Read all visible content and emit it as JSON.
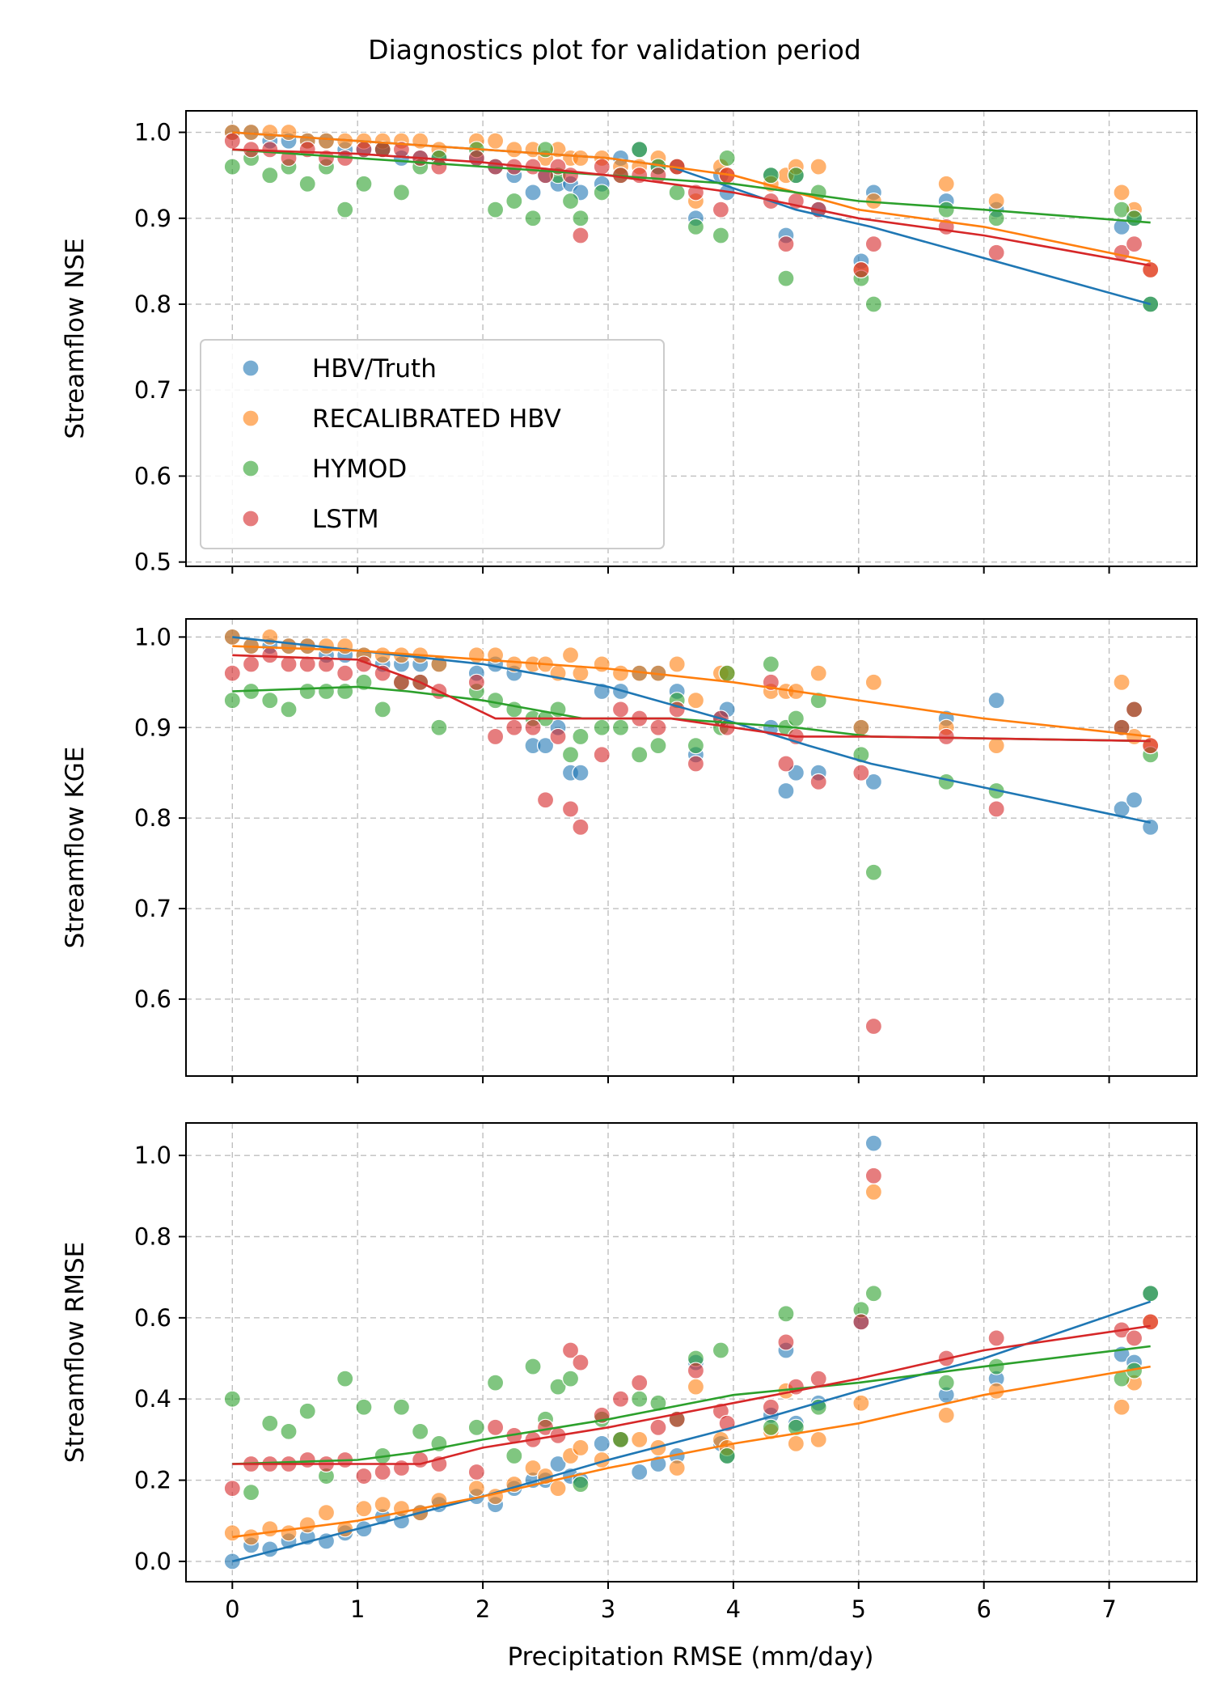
{
  "chart_data": {
    "type": "scatter",
    "title": "Diagnostics plot for validation period",
    "xlabel": "Precipitation RMSE (mm/day)",
    "xlim": [
      -0.37,
      7.7
    ],
    "xticks": [
      0,
      1,
      2,
      3,
      4,
      5,
      6,
      7
    ],
    "grid": true,
    "legend": {
      "placement": "lower-left of top panel",
      "entries": [
        "HBV/Truth",
        "RECALIBRATED HBV",
        "HYMOD",
        "LSTM"
      ]
    },
    "series_colors": {
      "HBV/Truth": "#1f77b4",
      "RECALIBRATED HBV": "#ff7f0e",
      "HYMOD": "#2ca02c",
      "LSTM": "#d62728"
    },
    "x": [
      0,
      0.15,
      0.3,
      0.45,
      0.6,
      0.75,
      0.9,
      1.05,
      1.2,
      1.35,
      1.5,
      1.65,
      1.95,
      2.1,
      2.25,
      2.4,
      2.5,
      2.6,
      2.7,
      2.78,
      2.95,
      3.1,
      3.25,
      3.4,
      3.55,
      3.7,
      3.9,
      3.95,
      4.3,
      4.42,
      4.5,
      4.68,
      5.02,
      5.12,
      5.7,
      6.1,
      7.1,
      7.2,
      7.33
    ],
    "panels": [
      {
        "ylabel": "Streamflow NSE",
        "ylim": [
          0.495,
          1.025
        ],
        "yticks": [
          0.5,
          0.6,
          0.7,
          0.8,
          0.9,
          1.0
        ],
        "series": [
          {
            "name": "HBV/Truth",
            "values": [
              1.0,
              1.0,
              0.99,
              0.99,
              0.99,
              0.99,
              0.98,
              0.98,
              0.98,
              0.97,
              0.97,
              0.97,
              0.97,
              0.96,
              0.95,
              0.93,
              0.95,
              0.94,
              0.94,
              0.93,
              0.94,
              0.97,
              0.98,
              0.96,
              0.96,
              0.9,
              0.95,
              0.93,
              0.95,
              0.88,
              0.95,
              0.91,
              0.85,
              0.93,
              0.92,
              0.91,
              0.89,
              0.9,
              0.8
            ]
          },
          {
            "name": "RECALIBRATED HBV",
            "values": [
              1.0,
              1.0,
              1.0,
              1.0,
              0.99,
              0.99,
              0.99,
              0.99,
              0.99,
              0.99,
              0.99,
              0.98,
              0.99,
              0.99,
              0.98,
              0.98,
              0.97,
              0.98,
              0.97,
              0.97,
              0.97,
              0.96,
              0.96,
              0.97,
              0.96,
              0.92,
              0.96,
              0.95,
              0.94,
              0.95,
              0.96,
              0.96,
              0.84,
              0.92,
              0.94,
              0.92,
              0.93,
              0.91,
              0.84
            ]
          },
          {
            "name": "HYMOD",
            "values": [
              0.96,
              0.97,
              0.95,
              0.96,
              0.94,
              0.96,
              0.91,
              0.94,
              0.98,
              0.93,
              0.96,
              0.97,
              0.98,
              0.91,
              0.92,
              0.9,
              0.98,
              0.95,
              0.92,
              0.9,
              0.93,
              0.95,
              0.98,
              0.96,
              0.93,
              0.89,
              0.88,
              0.97,
              0.95,
              0.83,
              0.95,
              0.93,
              0.83,
              0.8,
              0.91,
              0.9,
              0.91,
              0.9,
              0.8
            ]
          },
          {
            "name": "LSTM",
            "values": [
              0.99,
              0.98,
              0.98,
              0.97,
              0.98,
              0.97,
              0.97,
              0.98,
              0.98,
              0.98,
              0.97,
              0.96,
              0.97,
              0.96,
              0.96,
              0.96,
              0.95,
              0.96,
              0.95,
              0.88,
              0.96,
              0.95,
              0.95,
              0.95,
              0.96,
              0.93,
              0.91,
              0.95,
              0.92,
              0.87,
              0.92,
              0.91,
              0.84,
              0.87,
              0.89,
              0.86,
              0.86,
              0.87,
              0.84
            ]
          }
        ],
        "trend": [
          {
            "name": "HBV/Truth",
            "x": [
              0,
              1,
              2,
              3,
              3.5,
              4.5,
              5.1,
              7.33
            ],
            "y": [
              1.0,
              0.99,
              0.98,
              0.97,
              0.96,
              0.91,
              0.89,
              0.8
            ]
          },
          {
            "name": "RECALIBRATED HBV",
            "x": [
              0,
              1,
              2,
              3,
              4,
              5,
              6,
              7.33
            ],
            "y": [
              1.0,
              0.99,
              0.98,
              0.97,
              0.95,
              0.91,
              0.89,
              0.85
            ]
          },
          {
            "name": "HYMOD",
            "x": [
              0,
              1,
              2,
              3,
              4,
              5,
              6,
              7.33
            ],
            "y": [
              0.98,
              0.97,
              0.96,
              0.95,
              0.94,
              0.92,
              0.91,
              0.895
            ]
          },
          {
            "name": "LSTM",
            "x": [
              0,
              1,
              2,
              3,
              4,
              5,
              6,
              7.33
            ],
            "y": [
              0.98,
              0.975,
              0.965,
              0.95,
              0.93,
              0.9,
              0.88,
              0.845
            ]
          }
        ]
      },
      {
        "ylabel": "Streamflow KGE",
        "ylim": [
          0.515,
          1.02
        ],
        "yticks": [
          0.6,
          0.7,
          0.8,
          0.9,
          1.0
        ],
        "series": [
          {
            "name": "HBV/Truth",
            "values": [
              1.0,
              0.99,
              0.99,
              0.99,
              0.99,
              0.98,
              0.98,
              0.98,
              0.97,
              0.97,
              0.97,
              0.97,
              0.96,
              0.97,
              0.96,
              0.88,
              0.88,
              0.9,
              0.85,
              0.85,
              0.94,
              0.94,
              0.96,
              0.96,
              0.94,
              0.87,
              0.91,
              0.92,
              0.9,
              0.83,
              0.85,
              0.85,
              0.9,
              0.84,
              0.91,
              0.93,
              0.81,
              0.82,
              0.79
            ]
          },
          {
            "name": "RECALIBRATED HBV",
            "values": [
              1.0,
              0.99,
              1.0,
              0.99,
              0.99,
              0.99,
              0.99,
              0.98,
              0.98,
              0.98,
              0.98,
              0.97,
              0.98,
              0.98,
              0.97,
              0.97,
              0.97,
              0.96,
              0.98,
              0.96,
              0.97,
              0.96,
              0.96,
              0.96,
              0.97,
              0.93,
              0.96,
              0.96,
              0.94,
              0.94,
              0.94,
              0.96,
              0.9,
              0.95,
              0.9,
              0.88,
              0.95,
              0.89,
              0.88
            ]
          },
          {
            "name": "HYMOD",
            "values": [
              0.93,
              0.94,
              0.93,
              0.92,
              0.94,
              0.94,
              0.94,
              0.95,
              0.92,
              0.95,
              0.95,
              0.9,
              0.94,
              0.93,
              0.92,
              0.91,
              0.91,
              0.92,
              0.87,
              0.89,
              0.9,
              0.9,
              0.87,
              0.88,
              0.93,
              0.88,
              0.9,
              0.96,
              0.97,
              0.9,
              0.91,
              0.93,
              0.87,
              0.74,
              0.84,
              0.83,
              0.9,
              0.92,
              0.87
            ]
          },
          {
            "name": "LSTM",
            "values": [
              0.96,
              0.97,
              0.98,
              0.97,
              0.97,
              0.97,
              0.96,
              0.97,
              0.96,
              0.95,
              0.95,
              0.94,
              0.95,
              0.89,
              0.9,
              0.9,
              0.82,
              0.89,
              0.81,
              0.79,
              0.87,
              0.92,
              0.91,
              0.9,
              0.92,
              0.86,
              0.91,
              0.9,
              0.95,
              0.86,
              0.89,
              0.84,
              0.85,
              0.57,
              0.89,
              0.81,
              0.9,
              0.92,
              0.88
            ]
          }
        ],
        "trend": [
          {
            "name": "HBV/Truth",
            "x": [
              0,
              1,
              2,
              3,
              3.9,
              4.6,
              5.1,
              7.33
            ],
            "y": [
              1.0,
              0.985,
              0.97,
              0.945,
              0.91,
              0.88,
              0.86,
              0.795
            ]
          },
          {
            "name": "RECALIBRATED HBV",
            "x": [
              0,
              1,
              2,
              3,
              4,
              5,
              6,
              7.33
            ],
            "y": [
              0.99,
              0.985,
              0.975,
              0.965,
              0.95,
              0.93,
              0.91,
              0.89
            ]
          },
          {
            "name": "HYMOD",
            "x": [
              0,
              1,
              1.4,
              2,
              2.8,
              3.5,
              4.5,
              5.1,
              7.33
            ],
            "y": [
              0.94,
              0.945,
              0.94,
              0.93,
              0.91,
              0.91,
              0.9,
              0.89,
              0.885
            ]
          },
          {
            "name": "LSTM",
            "x": [
              0,
              1,
              1.5,
              2.1,
              2.6,
              3.5,
              4.5,
              5.1,
              7.33
            ],
            "y": [
              0.98,
              0.975,
              0.95,
              0.91,
              0.91,
              0.91,
              0.89,
              0.89,
              0.885
            ]
          }
        ]
      },
      {
        "ylabel": "Streamflow RMSE",
        "ylim": [
          -0.05,
          1.08
        ],
        "yticks": [
          0.0,
          0.2,
          0.4,
          0.6,
          0.8,
          1.0
        ],
        "series": [
          {
            "name": "HBV/Truth",
            "values": [
              0.0,
              0.04,
              0.03,
              0.05,
              0.06,
              0.05,
              0.07,
              0.08,
              0.11,
              0.1,
              0.12,
              0.14,
              0.16,
              0.14,
              0.18,
              0.2,
              0.2,
              0.24,
              0.21,
              0.2,
              0.29,
              0.3,
              0.22,
              0.24,
              0.26,
              0.49,
              0.29,
              0.26,
              0.36,
              0.52,
              0.34,
              0.39,
              0.59,
              1.03,
              0.41,
              0.45,
              0.51,
              0.49,
              0.66
            ]
          },
          {
            "name": "RECALIBRATED HBV",
            "values": [
              0.07,
              0.06,
              0.08,
              0.07,
              0.09,
              0.12,
              0.08,
              0.13,
              0.14,
              0.13,
              0.12,
              0.15,
              0.18,
              0.16,
              0.19,
              0.23,
              0.21,
              0.18,
              0.26,
              0.28,
              0.25,
              0.3,
              0.3,
              0.28,
              0.23,
              0.43,
              0.3,
              0.28,
              0.32,
              0.42,
              0.29,
              0.3,
              0.39,
              0.91,
              0.36,
              0.42,
              0.38,
              0.44,
              0.59
            ]
          },
          {
            "name": "HYMOD",
            "values": [
              0.4,
              0.17,
              0.34,
              0.32,
              0.37,
              0.21,
              0.45,
              0.38,
              0.26,
              0.38,
              0.32,
              0.29,
              0.33,
              0.44,
              0.26,
              0.48,
              0.35,
              0.43,
              0.45,
              0.19,
              0.35,
              0.3,
              0.4,
              0.39,
              0.35,
              0.5,
              0.52,
              0.26,
              0.33,
              0.61,
              0.33,
              0.38,
              0.62,
              0.66,
              0.44,
              0.48,
              0.45,
              0.47,
              0.66
            ]
          },
          {
            "name": "LSTM",
            "values": [
              0.18,
              0.24,
              0.24,
              0.24,
              0.25,
              0.24,
              0.25,
              0.21,
              0.22,
              0.23,
              0.25,
              0.24,
              0.22,
              0.33,
              0.31,
              0.3,
              0.33,
              0.31,
              0.52,
              0.49,
              0.36,
              0.4,
              0.44,
              0.33,
              0.35,
              0.47,
              0.37,
              0.34,
              0.38,
              0.54,
              0.43,
              0.45,
              0.59,
              0.95,
              0.5,
              0.55,
              0.57,
              0.55,
              0.59
            ]
          }
        ],
        "trend": [
          {
            "name": "HBV/Truth",
            "x": [
              0,
              1,
              2,
              3,
              4,
              5,
              6,
              7.33
            ],
            "y": [
              0.0,
              0.08,
              0.16,
              0.25,
              0.33,
              0.42,
              0.5,
              0.64
            ]
          },
          {
            "name": "RECALIBRATED HBV",
            "x": [
              0,
              1,
              2,
              3,
              4,
              5,
              6,
              7.33
            ],
            "y": [
              0.06,
              0.1,
              0.16,
              0.23,
              0.29,
              0.34,
              0.41,
              0.48
            ]
          },
          {
            "name": "HYMOD",
            "x": [
              0,
              1,
              1.5,
              2,
              3,
              4,
              5,
              6,
              7.33
            ],
            "y": [
              0.24,
              0.25,
              0.27,
              0.3,
              0.35,
              0.41,
              0.44,
              0.48,
              0.53
            ]
          },
          {
            "name": "LSTM",
            "x": [
              0,
              1,
              1.5,
              2,
              3,
              4,
              5,
              6,
              7.33
            ],
            "y": [
              0.24,
              0.24,
              0.24,
              0.28,
              0.33,
              0.39,
              0.45,
              0.52,
              0.58
            ]
          }
        ]
      }
    ]
  }
}
